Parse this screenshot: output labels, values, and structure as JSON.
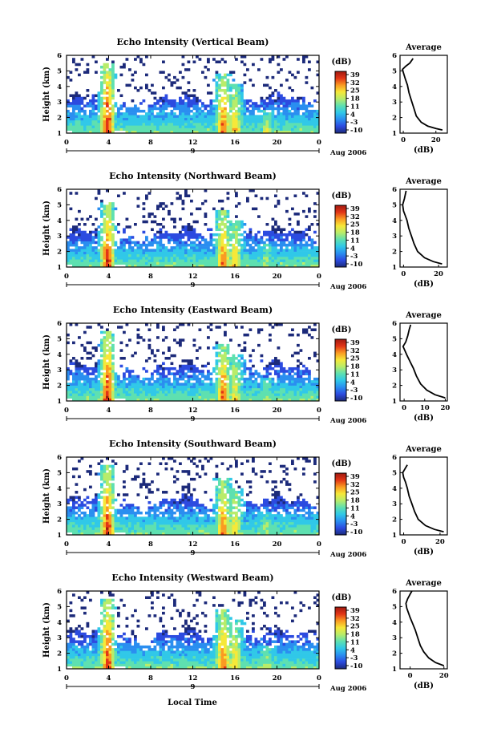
{
  "figure": {
    "date_label": "Aug 2006",
    "date_axis_day": "9",
    "xlabel_bottom": "Local Time",
    "colorbar_unit": "(dB)",
    "colorbar_ticks": [
      "39",
      "32",
      "25",
      "18",
      "11",
      "4",
      "-3",
      "-10"
    ],
    "colors": {
      "text": "#000000",
      "colormap": [
        "#1c2a7a",
        "#2c4be0",
        "#2a8ef0",
        "#30c8e8",
        "#5ee0b0",
        "#b8ec6a",
        "#f6e838",
        "#fa9a22",
        "#e23416",
        "#a01a10"
      ]
    }
  },
  "chart_data": [
    {
      "type": "heatmap",
      "title": "Echo Intensity (Vertical Beam)",
      "ylabel": "Height (km)",
      "xlabel": "",
      "x_ticks": [
        "0",
        "4",
        "8",
        "12",
        "16",
        "20",
        "0"
      ],
      "y_ticks": [
        "1",
        "2",
        "3",
        "4",
        "5",
        "6"
      ],
      "xlim": [
        0,
        24
      ],
      "ylim": [
        1,
        6
      ],
      "colorbar_range": [
        -10,
        39
      ],
      "average_profile": {
        "title": "Average",
        "xlabel": "(dB)",
        "x_ticks": [
          "0",
          "20"
        ],
        "xlim": [
          -2,
          27
        ],
        "y_ticks": [
          "1",
          "2",
          "3",
          "4",
          "5",
          "6"
        ],
        "points": [
          [
            24,
            1.2
          ],
          [
            20,
            1.3
          ],
          [
            15,
            1.45
          ],
          [
            11,
            1.7
          ],
          [
            8,
            2.1
          ],
          [
            6.5,
            2.6
          ],
          [
            5,
            3.1
          ],
          [
            3.5,
            3.6
          ],
          [
            2.5,
            4.1
          ],
          [
            1.2,
            4.5
          ],
          [
            0,
            4.9
          ],
          [
            -0.5,
            5.1
          ],
          [
            1.5,
            5.3
          ],
          [
            4,
            5.5
          ],
          [
            6,
            5.8
          ]
        ]
      },
      "echo_cells": [
        {
          "hour": 3.9,
          "top_km": 5.5,
          "peak_db": 36
        },
        {
          "hour": 14.9,
          "top_km": 4.9,
          "peak_db": 30
        },
        {
          "hour": 16.0,
          "top_km": 4.1,
          "peak_db": 25
        },
        {
          "hour": 19.0,
          "top_km": 2.5,
          "peak_db": 18
        }
      ]
    },
    {
      "type": "heatmap",
      "title": "Echo Intensity (Northward Beam)",
      "ylabel": "Height (km)",
      "xlabel": "",
      "x_ticks": [
        "0",
        "4",
        "8",
        "12",
        "16",
        "20",
        "0"
      ],
      "y_ticks": [
        "1",
        "2",
        "3",
        "4",
        "5",
        "6"
      ],
      "xlim": [
        0,
        24
      ],
      "ylim": [
        1,
        6
      ],
      "colorbar_range": [
        -10,
        39
      ],
      "average_profile": {
        "title": "Average",
        "xlabel": "(dB)",
        "x_ticks": [
          "0",
          "20"
        ],
        "xlim": [
          -2,
          25
        ],
        "y_ticks": [
          "1",
          "2",
          "3",
          "4",
          "5",
          "6"
        ],
        "points": [
          [
            22,
            1.2
          ],
          [
            17,
            1.35
          ],
          [
            12,
            1.6
          ],
          [
            8,
            2.0
          ],
          [
            6,
            2.5
          ],
          [
            4.5,
            3.0
          ],
          [
            3,
            3.5
          ],
          [
            2,
            4.0
          ],
          [
            1,
            4.3
          ],
          [
            0,
            4.6
          ],
          [
            -0.5,
            5.0
          ],
          [
            0.5,
            5.4
          ],
          [
            1.5,
            5.9
          ]
        ]
      },
      "echo_cells": [
        {
          "hour": 3.9,
          "top_km": 5.2,
          "peak_db": 34
        },
        {
          "hour": 14.9,
          "top_km": 4.6,
          "peak_db": 30
        },
        {
          "hour": 16.0,
          "top_km": 4.0,
          "peak_db": 24
        },
        {
          "hour": 19.0,
          "top_km": 2.5,
          "peak_db": 16
        }
      ]
    },
    {
      "type": "heatmap",
      "title": "Echo Intensity (Eastward Beam)",
      "ylabel": "Height (km)",
      "xlabel": "",
      "x_ticks": [
        "0",
        "4",
        "8",
        "12",
        "16",
        "20",
        "0"
      ],
      "y_ticks": [
        "1",
        "2",
        "3",
        "4",
        "5",
        "6"
      ],
      "xlim": [
        0,
        24
      ],
      "ylim": [
        1,
        6
      ],
      "colorbar_range": [
        -10,
        39
      ],
      "average_profile": {
        "title": "Average",
        "xlabel": "(dB)",
        "x_ticks": [
          "0",
          "10",
          "20"
        ],
        "xlim": [
          -2,
          21
        ],
        "y_ticks": [
          "1",
          "2",
          "3",
          "4",
          "5",
          "6"
        ],
        "points": [
          [
            20,
            1.2
          ],
          [
            15,
            1.4
          ],
          [
            11,
            1.7
          ],
          [
            8,
            2.1
          ],
          [
            6,
            2.6
          ],
          [
            4.5,
            3.1
          ],
          [
            3,
            3.5
          ],
          [
            1.5,
            3.9
          ],
          [
            0.5,
            4.2
          ],
          [
            -0.5,
            4.5
          ],
          [
            0.8,
            4.8
          ],
          [
            1.8,
            5.2
          ],
          [
            2.5,
            5.6
          ],
          [
            3.2,
            5.9
          ]
        ]
      },
      "echo_cells": [
        {
          "hour": 3.9,
          "top_km": 5.5,
          "peak_db": 34
        },
        {
          "hour": 14.9,
          "top_km": 4.7,
          "peak_db": 30
        },
        {
          "hour": 16.0,
          "top_km": 4.0,
          "peak_db": 22
        },
        {
          "hour": 19.0,
          "top_km": 2.5,
          "peak_db": 16
        }
      ]
    },
    {
      "type": "heatmap",
      "title": "Echo Intensity (Southward Beam)",
      "ylabel": "Height (km)",
      "xlabel": "",
      "x_ticks": [
        "0",
        "4",
        "8",
        "12",
        "16",
        "20",
        "0"
      ],
      "y_ticks": [
        "1",
        "2",
        "3",
        "4",
        "5",
        "6"
      ],
      "xlim": [
        0,
        24
      ],
      "ylim": [
        1,
        6
      ],
      "colorbar_range": [
        -10,
        39
      ],
      "average_profile": {
        "title": "Average",
        "xlabel": "(dB)",
        "x_ticks": [
          "0",
          "20"
        ],
        "xlim": [
          -2,
          24
        ],
        "y_ticks": [
          "1",
          "2",
          "3",
          "4",
          "5",
          "6"
        ],
        "points": [
          [
            22,
            1.2
          ],
          [
            17,
            1.35
          ],
          [
            12,
            1.6
          ],
          [
            8,
            2.0
          ],
          [
            6,
            2.5
          ],
          [
            4.5,
            3.0
          ],
          [
            3,
            3.5
          ],
          [
            2,
            4.0
          ],
          [
            1,
            4.4
          ],
          [
            0,
            4.7
          ],
          [
            -0.5,
            5.0
          ],
          [
            1,
            5.3
          ],
          [
            2,
            5.5
          ]
        ]
      },
      "echo_cells": [
        {
          "hour": 3.9,
          "top_km": 5.5,
          "peak_db": 34
        },
        {
          "hour": 14.9,
          "top_km": 4.6,
          "peak_db": 30
        },
        {
          "hour": 16.0,
          "top_km": 4.0,
          "peak_db": 23
        },
        {
          "hour": 19.0,
          "top_km": 2.5,
          "peak_db": 16
        }
      ]
    },
    {
      "type": "heatmap",
      "title": "Echo Intensity (Westward Beam)",
      "ylabel": "Height (km)",
      "xlabel": "Local Time",
      "x_ticks": [
        "0",
        "4",
        "8",
        "12",
        "16",
        "20",
        "0"
      ],
      "y_ticks": [
        "1",
        "2",
        "3",
        "4",
        "5",
        "6"
      ],
      "xlim": [
        0,
        24
      ],
      "ylim": [
        1,
        6
      ],
      "colorbar_range": [
        -10,
        39
      ],
      "average_profile": {
        "title": "Average",
        "xlabel": "(dB)",
        "x_ticks": [
          "0",
          "20"
        ],
        "xlim": [
          -6,
          22
        ],
        "y_ticks": [
          "1",
          "2",
          "3",
          "4",
          "5",
          "6"
        ],
        "points": [
          [
            20,
            1.2
          ],
          [
            15,
            1.4
          ],
          [
            11,
            1.7
          ],
          [
            8,
            2.1
          ],
          [
            6,
            2.5
          ],
          [
            4.5,
            3.0
          ],
          [
            3,
            3.5
          ],
          [
            1.5,
            3.9
          ],
          [
            0,
            4.3
          ],
          [
            -1,
            4.6
          ],
          [
            -2,
            4.9
          ],
          [
            -2.5,
            5.2
          ],
          [
            -1.5,
            5.5
          ],
          [
            0,
            5.8
          ],
          [
            1,
            6.0
          ]
        ]
      },
      "echo_cells": [
        {
          "hour": 3.9,
          "top_km": 5.5,
          "peak_db": 34
        },
        {
          "hour": 14.9,
          "top_km": 4.9,
          "peak_db": 30
        },
        {
          "hour": 16.0,
          "top_km": 4.1,
          "peak_db": 24
        },
        {
          "hour": 19.0,
          "top_km": 2.5,
          "peak_db": 16
        }
      ]
    }
  ]
}
